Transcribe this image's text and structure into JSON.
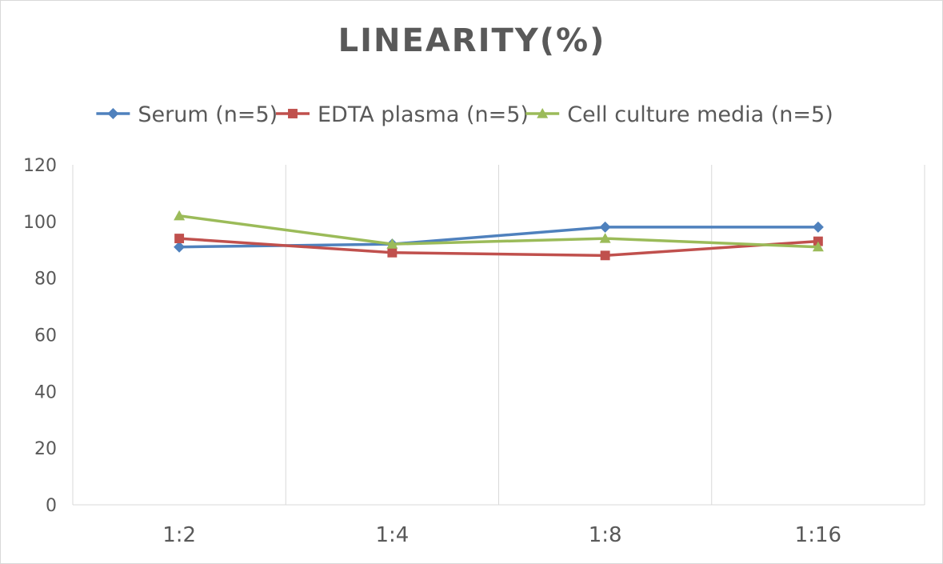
{
  "chart_data": {
    "type": "line",
    "title": "LINEARITY(%)",
    "xlabel": "",
    "ylabel": "",
    "categories": [
      "1:2",
      "1:4",
      "1:8",
      "1:16"
    ],
    "ylim": [
      0,
      120
    ],
    "yticks": [
      0,
      20,
      40,
      60,
      80,
      100,
      120
    ],
    "grid": "vertical",
    "legend_position": "top",
    "series": [
      {
        "name": "Serum (n=5)",
        "values": [
          91,
          92,
          98,
          98
        ],
        "color": "#4f81bd",
        "marker": "diamond"
      },
      {
        "name": "EDTA plasma (n=5)",
        "values": [
          94,
          89,
          88,
          93
        ],
        "color": "#c0504d",
        "marker": "square"
      },
      {
        "name": "Cell culture media (n=5)",
        "values": [
          102,
          92,
          94,
          91
        ],
        "color": "#9bbb59",
        "marker": "triangle"
      }
    ]
  }
}
